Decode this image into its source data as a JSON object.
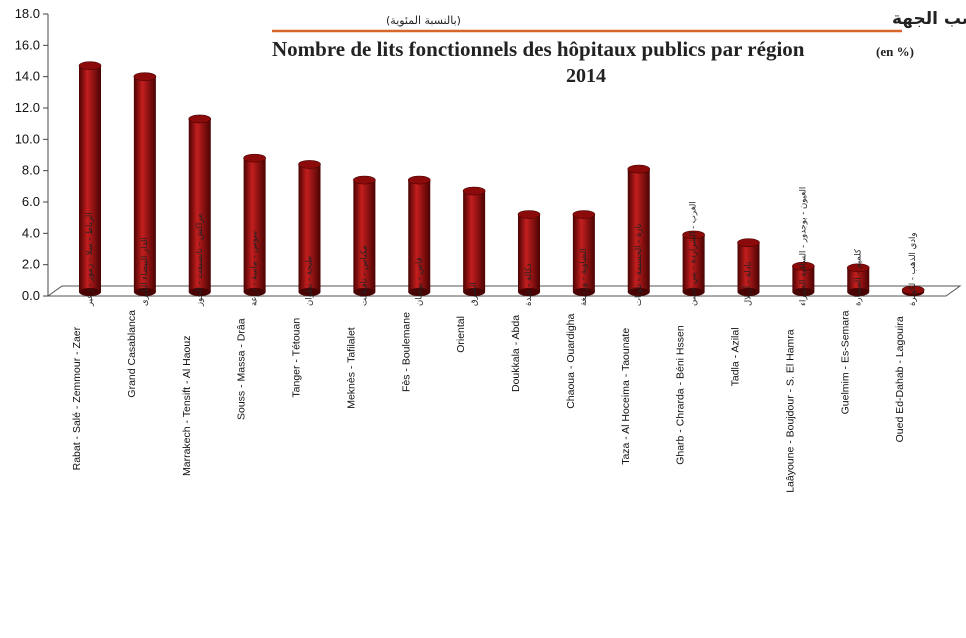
{
  "chart_data": {
    "type": "bar",
    "title_ar": "عدد الأسرة المستعملة بالمستشفيات العمومية حسب الجهة",
    "title_ar_unit": "(بالنسبة المئوية)",
    "title": "Nombre de lits fonctionnels  des hôpitaux publics par région",
    "title_unit": "(en %)",
    "subtitle": "2014",
    "ylim": [
      0,
      18
    ],
    "yticks": [
      "0.0",
      "2.0",
      "4.0",
      "6.0",
      "8.0",
      "10.0",
      "12.0",
      "14.0",
      "16.0",
      "18.0"
    ],
    "grid": false,
    "legend": "none",
    "bar_color": "#8b0a0a",
    "bar_highlight": "#c41e1e",
    "bar_shadow": "#4a0303",
    "title_underline_color": "#d9652b",
    "categories": [
      {
        "fr": "Rabat - Salé - Zemmour - Zaer",
        "ar": "الرباط - سلا - زمور - زعير"
      },
      {
        "fr": "Grand Casablanca",
        "ar": "الدار البيضاء الكبرى"
      },
      {
        "fr": "Marrakech - Tensift - Al Haouz",
        "ar": "مراكش - تانسيفت - الحوز"
      },
      {
        "fr": "Souss - Massa - Drâa",
        "ar": "سوس - ماسة - درعة"
      },
      {
        "fr": "Tanger - Tétouan",
        "ar": "طنجة - تطوان"
      },
      {
        "fr": "Meknès - Tafilalet",
        "ar": "مكناس - تافيلالت"
      },
      {
        "fr": "Fès - Boulemane",
        "ar": "فاس - بولمان"
      },
      {
        "fr": "Oriental",
        "ar": "الشرق"
      },
      {
        "fr": "Doukkala - Abda",
        "ar": "دكالة - عبدة"
      },
      {
        "fr": "Chaoua - Ouardigha",
        "ar": "الشاوية - ورديغة"
      },
      {
        "fr": "Taza - Al Hoceima - Taounate",
        "ar": "تازة - الحسيمة - تاونات"
      },
      {
        "fr": "Gharb - Chrarda - Béni Hssen",
        "ar": "الغرب - الشراردة - بني حسن"
      },
      {
        "fr": "Tadla - Azilal",
        "ar": "تادلة - أزيلال"
      },
      {
        "fr": "Laâyoune - Boujdour - S. El Hamra",
        "ar": "العيون - بوجدور - الساقية الحمراء"
      },
      {
        "fr": "Guelmim - Es-Semara",
        "ar": "كلميم - السمارة"
      },
      {
        "fr": "Oued Ed-Dahab - Lagouira",
        "ar": "وادي الذهب - لكويرة"
      }
    ],
    "values": [
      14.7,
      14.0,
      11.3,
      8.8,
      8.4,
      7.4,
      7.4,
      6.7,
      5.2,
      5.2,
      8.1,
      3.9,
      3.4,
      1.9,
      1.8,
      0.3
    ]
  }
}
